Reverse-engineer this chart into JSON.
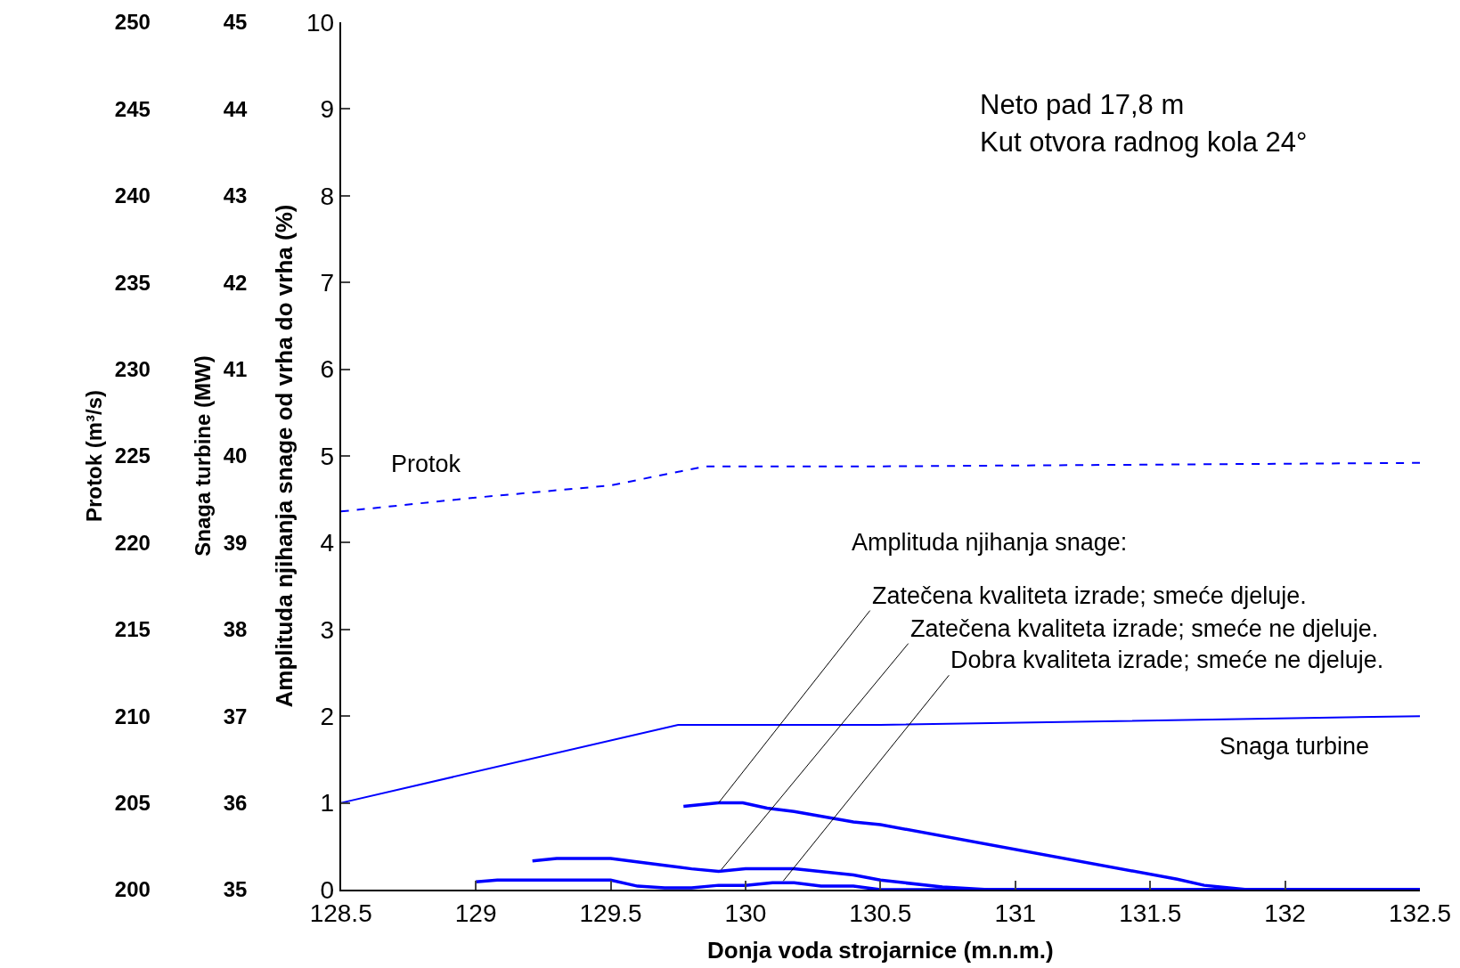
{
  "chart_data": {
    "type": "line",
    "xlabel": "Donja voda strojarnice (m.n.m.)",
    "ylabel": "Amplituda njihanja snage od vrha do vrha (%)",
    "y2label": "Snaga turbine (MW)",
    "y3label": "Protok (m³/s)",
    "xlim": [
      128.5,
      132.5
    ],
    "xticks": [
      128.5,
      129,
      129.5,
      130,
      130.5,
      131,
      131.5,
      132,
      132.5
    ],
    "ylim": [
      0,
      10
    ],
    "yticks": [
      0,
      1,
      2,
      3,
      4,
      5,
      6,
      7,
      8,
      9,
      10
    ],
    "y2lim": [
      35,
      45
    ],
    "y2ticks": [
      35,
      36,
      37,
      38,
      39,
      40,
      41,
      42,
      43,
      44,
      45
    ],
    "y3lim": [
      200,
      250
    ],
    "y3ticks": [
      200,
      205,
      210,
      215,
      220,
      225,
      230,
      235,
      240,
      245,
      250
    ],
    "legend": false,
    "marker": "none",
    "line_style": "solid",
    "series": [
      {
        "name": "Protok",
        "color": "#0000ff",
        "axis": "y3",
        "line_style": "dashed",
        "x": [
          128.5,
          129,
          129.5,
          129.85,
          130.5,
          132.5
        ],
        "values": [
          221.8,
          222.6,
          223.3,
          224.4,
          224.4,
          224.6
        ]
      },
      {
        "name": "Snaga turbine",
        "color": "#0000ff",
        "axis": "y2",
        "x": [
          128.5,
          129.75,
          130.5,
          132.5
        ],
        "values": [
          36.0,
          36.9,
          36.9,
          37.0
        ]
      },
      {
        "color": "#0000ff",
        "x": [
          129.77,
          129.9,
          129.99,
          130.08,
          130.18,
          130.4,
          130.5,
          131.6,
          131.7,
          131.86,
          132.5
        ],
        "values": [
          0.96,
          1.0,
          1.0,
          0.94,
          0.9,
          0.78,
          0.75,
          0.12,
          0.05,
          0.0,
          0.0
        ]
      },
      {
        "color": "#0000ff",
        "x": [
          129.21,
          129.3,
          129.5,
          129.7,
          129.8,
          129.9,
          130.0,
          130.18,
          130.4,
          130.5,
          130.73,
          130.9,
          132.5
        ],
        "values": [
          0.33,
          0.36,
          0.36,
          0.28,
          0.24,
          0.21,
          0.24,
          0.24,
          0.17,
          0.11,
          0.03,
          0.0,
          0.0
        ]
      },
      {
        "color": "#0000ff",
        "x": [
          129.0,
          129.08,
          129.5,
          129.6,
          129.7,
          129.8,
          129.9,
          130.0,
          130.1,
          130.18,
          130.28,
          130.4,
          130.5,
          132.5
        ],
        "values": [
          0.09,
          0.11,
          0.11,
          0.04,
          0.02,
          0.02,
          0.05,
          0.05,
          0.08,
          0.08,
          0.04,
          0.04,
          0.0,
          0.0
        ]
      }
    ],
    "annotations": [
      "Neto pad 17,8 m",
      "Kut otvora radnog kola 24°",
      "Amplituda njihanja snage:",
      {
        "text": "Zatečena kvaliteta izrade; smeće djeluje.",
        "x": 129.9,
        "y": 1.0
      },
      {
        "text": "Zatečena kvaliteta izrade; smeće ne djeluje.",
        "x": 129.91,
        "y": 0.23
      },
      {
        "text": "Dobra kvaliteta izrade; smeće ne djeluje.",
        "x": 130.14,
        "y": 0.1
      }
    ]
  }
}
